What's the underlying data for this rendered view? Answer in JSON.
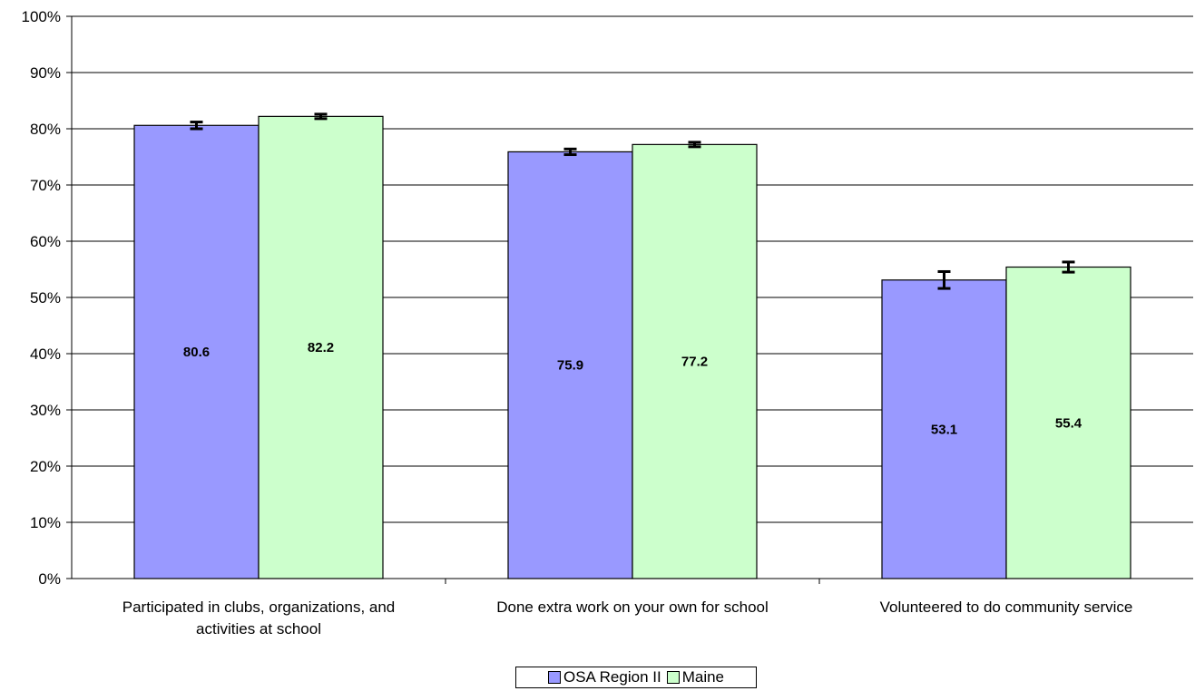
{
  "chart_data": {
    "type": "bar",
    "categories": [
      [
        "Participated in clubs, organizations, and",
        "activities at school"
      ],
      [
        "Done extra work on your own for school"
      ],
      [
        "Volunteered to do community service"
      ]
    ],
    "series": [
      {
        "name": "OSA Region II",
        "color": "#9999ff",
        "values": [
          80.6,
          75.9,
          53.1
        ],
        "error": [
          0.6,
          0.5,
          1.5
        ]
      },
      {
        "name": "Maine",
        "color": "#ccffcc",
        "values": [
          82.2,
          77.2,
          55.4
        ],
        "error": [
          0.4,
          0.4,
          0.9
        ]
      }
    ],
    "data_labels": [
      "80.6",
      "75.9",
      "53.1",
      "82.2",
      "77.2",
      "55.4"
    ],
    "y_ticks": [
      "0%",
      "10%",
      "20%",
      "30%",
      "40%",
      "50%",
      "60%",
      "70%",
      "80%",
      "90%",
      "100%"
    ],
    "ylim": [
      0,
      100
    ],
    "grid": true,
    "legend": "bottom-center"
  }
}
